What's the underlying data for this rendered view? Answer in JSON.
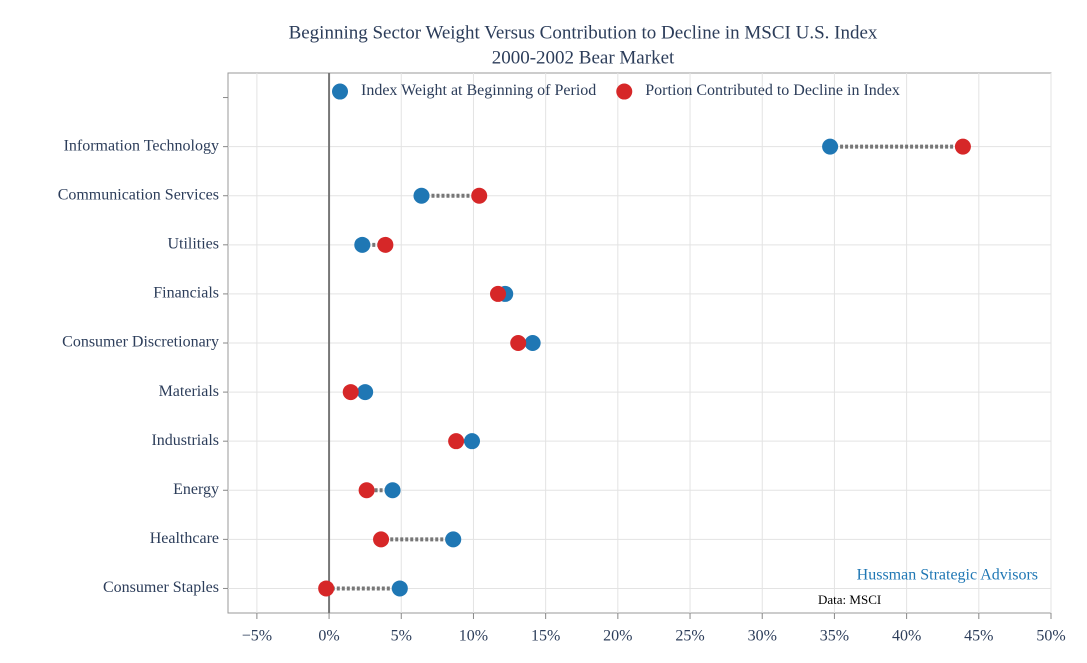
{
  "chart_data": {
    "type": "dumbbell",
    "title": "Beginning Sector Weight Versus Contribution to Decline in MSCI U.S. Index",
    "subtitle": "2000-2002 Bear Market",
    "categories": [
      null,
      "Information Technology",
      "Communication Services",
      "Utilities",
      "Financials",
      "Consumer Discretionary",
      "Materials",
      "Industrials",
      "Energy",
      "Healthcare",
      "Consumer Staples"
    ],
    "series": [
      {
        "name": "Index Weight at Beginning of Period",
        "color": "#1f77b4",
        "values": [
          null,
          34.7,
          6.4,
          2.3,
          12.2,
          14.1,
          2.5,
          9.9,
          4.4,
          8.6,
          4.9
        ]
      },
      {
        "name": "Portion Contributed to Decline in Index",
        "color": "#d62728",
        "values": [
          null,
          43.9,
          10.4,
          3.9,
          11.7,
          13.1,
          1.5,
          8.8,
          2.6,
          3.6,
          -0.2
        ]
      }
    ],
    "xlim": [
      -7,
      50
    ],
    "xticks": [
      {
        "value": -5,
        "label": "−5%"
      },
      {
        "value": 0,
        "label": "0%"
      },
      {
        "value": 5,
        "label": "5%"
      },
      {
        "value": 10,
        "label": "10%"
      },
      {
        "value": 15,
        "label": "15%"
      },
      {
        "value": 20,
        "label": "20%"
      },
      {
        "value": 25,
        "label": "25%"
      },
      {
        "value": 30,
        "label": "30%"
      },
      {
        "value": 35,
        "label": "35%"
      },
      {
        "value": 40,
        "label": "40%"
      },
      {
        "value": 45,
        "label": "45%"
      },
      {
        "value": 50,
        "label": "50%"
      }
    ],
    "grid": true,
    "legend": "top",
    "annotations": [
      "Hussman Strategic Advisors",
      "Data: MSCI"
    ]
  }
}
